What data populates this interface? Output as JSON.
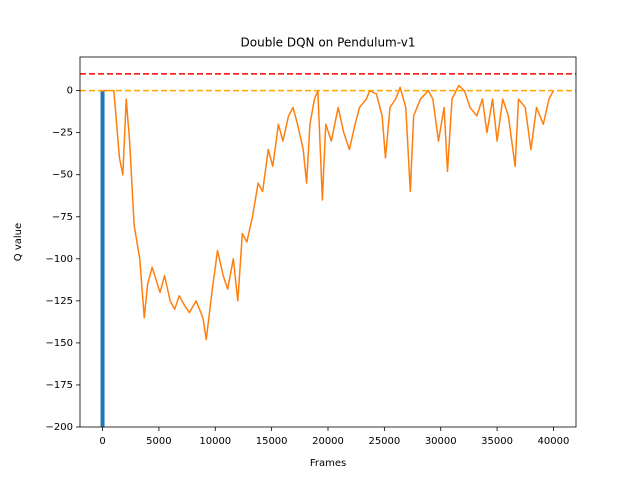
{
  "chart_data": {
    "type": "line",
    "title": "Double DQN on Pendulum-v1",
    "x_label": "Frames",
    "y_label": "Q value",
    "x": [
      0,
      1000,
      1500,
      1800,
      2100,
      2400,
      2800,
      3300,
      3700,
      4000,
      4400,
      5100,
      5500,
      6000,
      6400,
      6800,
      7300,
      7700,
      8300,
      8900,
      9200,
      9700,
      10200,
      10700,
      11100,
      11600,
      12000,
      12400,
      12800,
      13300,
      13800,
      14200,
      14700,
      15100,
      15600,
      16000,
      16500,
      16900,
      17300,
      17800,
      18100,
      18400,
      18800,
      19100,
      19500,
      19800,
      20300,
      20900,
      21400,
      21900,
      22400,
      22800,
      23400,
      23700,
      24300,
      24800,
      25100,
      25500,
      26000,
      26400,
      26900,
      27300,
      27600,
      28200,
      28900,
      29300,
      29800,
      30300,
      30600,
      31000,
      31600,
      32100,
      32600,
      33200,
      33700,
      34100,
      34600,
      35000,
      35500,
      36000,
      36600,
      36900,
      37500,
      38000,
      38500,
      39100,
      39600,
      40000
    ],
    "series": [
      {
        "color": "#ff7f0e",
        "values": [
          0,
          0,
          -40,
          -50,
          -5,
          -30,
          -80,
          -100,
          -135,
          -115,
          -105,
          -120,
          -110,
          -125,
          -130,
          -122,
          -128,
          -132,
          -125,
          -135,
          -148,
          -120,
          -95,
          -110,
          -118,
          -100,
          -125,
          -85,
          -90,
          -75,
          -55,
          -60,
          -35,
          -45,
          -20,
          -30,
          -15,
          -10,
          -20,
          -35,
          -55,
          -20,
          -5,
          0,
          -65,
          -20,
          -30,
          -10,
          -25,
          -35,
          -20,
          -10,
          -5,
          0,
          -2,
          -15,
          -40,
          -10,
          -5,
          2,
          -10,
          -60,
          -15,
          -5,
          0,
          -5,
          -30,
          -10,
          -48,
          -5,
          3,
          0,
          -10,
          -15,
          -5,
          -25,
          -5,
          -30,
          -5,
          -15,
          -45,
          -5,
          -10,
          -35,
          -10,
          -20,
          -5,
          0
        ]
      }
    ],
    "bars": {
      "x": [
        0
      ],
      "values": [
        0
      ],
      "color": "#1f77b4"
    },
    "hlines": [
      {
        "value": 10,
        "color": "#ff0000"
      },
      {
        "value": 0,
        "color": "#ffa500"
      }
    ],
    "xlim": [
      -2000,
      42000
    ],
    "ylim": [
      -200,
      20
    ],
    "xticks": [
      0,
      5000,
      10000,
      15000,
      20000,
      25000,
      30000,
      35000,
      40000
    ],
    "yticks": [
      {
        "value": -200,
        "label": "−200"
      },
      {
        "value": -175,
        "label": "−175"
      },
      {
        "value": -150,
        "label": "−150"
      },
      {
        "value": -125,
        "label": "−125"
      },
      {
        "value": -100,
        "label": "−100"
      },
      {
        "value": -75,
        "label": "−75"
      },
      {
        "value": -50,
        "label": "−50"
      },
      {
        "value": -25,
        "label": "−25"
      },
      0
    ]
  }
}
